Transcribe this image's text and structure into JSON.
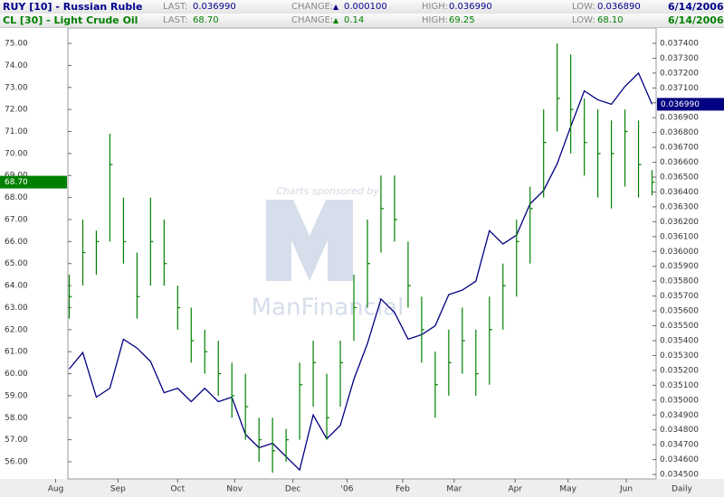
{
  "header": {
    "rows": [
      {
        "last_label": "LAST:",
        "last": "0.036990",
        "change_label": "CHANGE:",
        "change": "0.000100",
        "high_label": "HIGH:",
        "high": "0.036990",
        "low_label": "LOW:",
        "low": "0.036890",
        "date": "6/14/2006"
      },
      {
        "last_label": "LAST:",
        "last": "68.70",
        "change_label": "CHANGE:",
        "change": "0.14",
        "high_label": "HIGH:",
        "high": "69.25",
        "low_label": "LOW:",
        "low": "68.10",
        "date": "6/14/2006"
      }
    ]
  },
  "watermark": {
    "sponsor": "Charts sponsored by",
    "brand": "ManFinancial"
  },
  "chart_data": {
    "type": "ohlc",
    "x_label": "Daily",
    "xlim": [
      -0.1,
      43.3
    ],
    "xticks": [
      {
        "value": -1,
        "label": "Aug"
      },
      {
        "value": 3.6,
        "label": "Sep"
      },
      {
        "value": 8,
        "label": "Oct"
      },
      {
        "value": 12.2,
        "label": "Nov"
      },
      {
        "value": 16.5,
        "label": "Dec"
      },
      {
        "value": 20.5,
        "label": "'06"
      },
      {
        "value": 24.6,
        "label": "Feb"
      },
      {
        "value": 28.4,
        "label": "Mar"
      },
      {
        "value": 32.9,
        "label": "Apr"
      },
      {
        "value": 36.8,
        "label": "May"
      },
      {
        "value": 41.1,
        "label": "Jun"
      }
    ],
    "ylim": [
      55.22,
      75.7
    ],
    "yticks": [
      {
        "value": 56,
        "label": "56.00"
      },
      {
        "value": 57,
        "label": "57.00"
      },
      {
        "value": 58,
        "label": "58.00"
      },
      {
        "value": 59,
        "label": "59.00"
      },
      {
        "value": 60,
        "label": "60.00"
      },
      {
        "value": 61,
        "label": "61.00"
      },
      {
        "value": 62,
        "label": "62.00"
      },
      {
        "value": 63,
        "label": "63.00"
      },
      {
        "value": 64,
        "label": "64.00"
      },
      {
        "value": 65,
        "label": "65.00"
      },
      {
        "value": 66,
        "label": "66.00"
      },
      {
        "value": 67,
        "label": "67.00"
      },
      {
        "value": 68,
        "label": "68.00"
      },
      {
        "value": 69,
        "label": "69.00"
      },
      {
        "value": 70,
        "label": "70.00"
      },
      {
        "value": 71,
        "label": "71.00"
      },
      {
        "value": 72,
        "label": "72.00"
      },
      {
        "value": 73,
        "label": "73.00"
      },
      {
        "value": 74,
        "label": "74.00"
      },
      {
        "value": 75,
        "label": "75.00"
      }
    ],
    "y2lim": [
      0.03447,
      0.037503
    ],
    "y2ticks": [
      {
        "value": 0.0345,
        "label": "0.034500"
      },
      {
        "value": 0.0346,
        "label": "0.034600"
      },
      {
        "value": 0.0347,
        "label": "0.034700"
      },
      {
        "value": 0.0348,
        "label": "0.034800"
      },
      {
        "value": 0.0349,
        "label": "0.034900"
      },
      {
        "value": 0.035,
        "label": "0.035000"
      },
      {
        "value": 0.0351,
        "label": "0.035100"
      },
      {
        "value": 0.0352,
        "label": "0.035200"
      },
      {
        "value": 0.0353,
        "label": "0.035300"
      },
      {
        "value": 0.0354,
        "label": "0.035400"
      },
      {
        "value": 0.0355,
        "label": "0.035500"
      },
      {
        "value": 0.0356,
        "label": "0.035600"
      },
      {
        "value": 0.0357,
        "label": "0.035700"
      },
      {
        "value": 0.0358,
        "label": "0.035800"
      },
      {
        "value": 0.0359,
        "label": "0.035900"
      },
      {
        "value": 0.036,
        "label": "0.036000"
      },
      {
        "value": 0.0361,
        "label": "0.036100"
      },
      {
        "value": 0.0362,
        "label": "0.036200"
      },
      {
        "value": 0.0363,
        "label": "0.036300"
      },
      {
        "value": 0.0364,
        "label": "0.036400"
      },
      {
        "value": 0.0365,
        "label": "0.036500"
      },
      {
        "value": 0.0366,
        "label": "0.036600"
      },
      {
        "value": 0.0367,
        "label": "0.036700"
      },
      {
        "value": 0.0368,
        "label": "0.036800"
      },
      {
        "value": 0.0369,
        "label": "0.036900"
      },
      {
        "value": 0.037,
        "label": "0.037000"
      },
      {
        "value": 0.0371,
        "label": "0.037100"
      },
      {
        "value": 0.0372,
        "label": "0.037200"
      },
      {
        "value": 0.0373,
        "label": "0.037300"
      },
      {
        "value": 0.0374,
        "label": "0.037400"
      }
    ],
    "series": [
      {
        "name": "RUY [10] - Russian Ruble",
        "color": "#000080",
        "axis": "y2",
        "values": [
          0.03521,
          0.03532,
          0.03502,
          0.03508,
          0.03541,
          0.03535,
          0.03526,
          0.03505,
          0.03508,
          0.03499,
          0.03508,
          0.03499,
          0.03502,
          0.03477,
          0.03468,
          0.03471,
          0.03462,
          0.03453,
          0.0349,
          0.03474,
          0.03483,
          0.03514,
          0.03538,
          0.03568,
          0.03559,
          0.03541,
          0.03544,
          0.0355,
          0.03571,
          0.03574,
          0.0358,
          0.03614,
          0.03605,
          0.03611,
          0.03632,
          0.03641,
          0.03659,
          0.03684,
          0.03708,
          0.03702,
          0.03699,
          0.03711,
          0.0372,
          0.03699
        ]
      },
      {
        "name": "CL [30] - Light Crude Oil",
        "color": "#008000",
        "high": [
          64.5,
          67,
          66.5,
          70.9,
          68,
          65.5,
          68,
          67,
          64,
          63,
          62,
          61.5,
          60.5,
          60,
          58,
          58,
          57.5,
          60.5,
          61.5,
          60,
          61.5,
          64.5,
          67,
          69,
          69,
          66,
          63.5,
          61,
          62,
          63,
          62,
          63.5,
          65,
          67,
          68.5,
          72,
          75,
          74.5,
          72.5,
          72,
          71.5,
          72,
          71.5,
          69.25
        ],
        "low": [
          62.5,
          64,
          64.5,
          66,
          65,
          62.5,
          64,
          64,
          62,
          60.5,
          60,
          59,
          58,
          57,
          56,
          55.5,
          56,
          57,
          58.5,
          57,
          58.5,
          61.5,
          63,
          65.5,
          66,
          63,
          60.5,
          58,
          59,
          60,
          59,
          59.5,
          62,
          63.5,
          65,
          68,
          71,
          70,
          69,
          68,
          67.5,
          68.5,
          68,
          68.1
        ],
        "close": [
          63.5,
          65.5,
          66,
          69.5,
          66,
          63.5,
          66,
          65,
          63,
          61.5,
          61,
          60,
          59,
          58.5,
          57,
          56.5,
          57,
          59.5,
          60.5,
          58,
          60.5,
          63,
          65,
          67.5,
          67,
          64,
          62,
          59.5,
          60.5,
          61.5,
          60,
          62,
          64,
          66,
          67.5,
          70.5,
          72.5,
          72,
          70.5,
          70,
          70,
          71,
          69.5,
          68.7
        ]
      }
    ]
  }
}
